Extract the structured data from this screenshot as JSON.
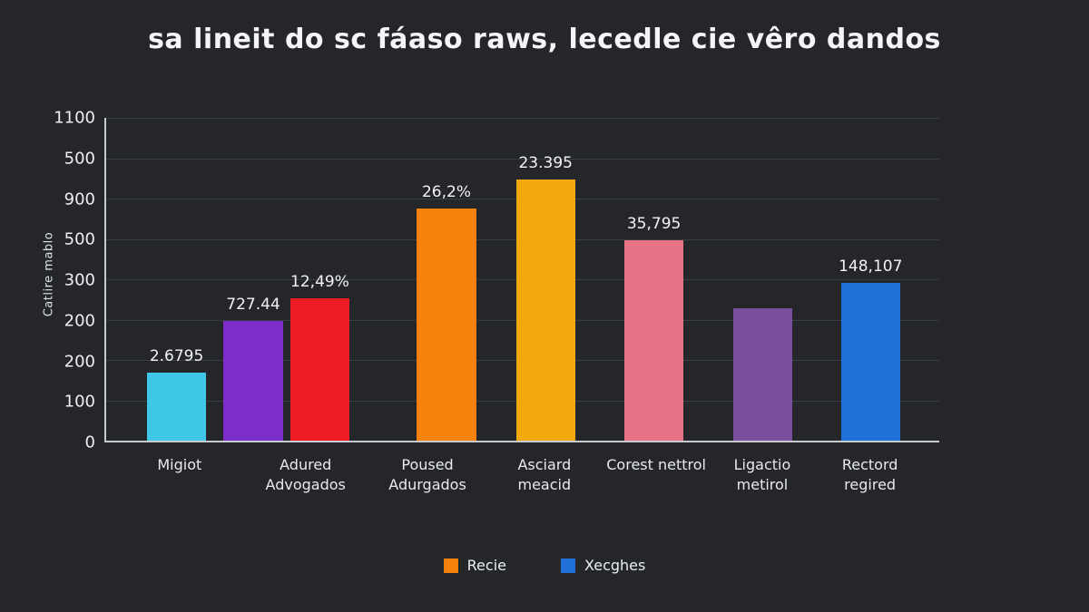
{
  "title": "sa lineit do sc fáaso raws, lecedle cie vêro dandos",
  "colors": {
    "background": "#242629",
    "grid": "#3a3e43",
    "axis": "#c7cbd0",
    "text": "#f1f3f4"
  },
  "chart_data": {
    "type": "bar",
    "title": "sa lineit do sc fáaso raws, lecedle cie vêro dandos",
    "xlabel": "",
    "ylabel": "Catlire mablo",
    "grid": true,
    "legend_position": "bottom",
    "y_ticks": [
      "1100",
      "500",
      "900",
      "500",
      "300",
      "200",
      "200",
      "100",
      "0"
    ],
    "bar_width_pct": 7.1,
    "bars": [
      {
        "value_label": "2.6795",
        "color": "#3ec7e6",
        "height_pct": 21,
        "x_pct": 4.9
      },
      {
        "value_label": "727.44",
        "color": "#7b2ec9",
        "height_pct": 37,
        "x_pct": 14.1
      },
      {
        "value_label": "12,49%",
        "color": "#ed1c24",
        "height_pct": 44,
        "x_pct": 22.1
      },
      {
        "value_label": "26,2%",
        "color": "#f6820d",
        "height_pct": 72,
        "x_pct": 37.3
      },
      {
        "value_label": "23.395",
        "color": "#f3a90d",
        "height_pct": 81,
        "x_pct": 49.2
      },
      {
        "value_label": "35,795",
        "color": "#e97386",
        "height_pct": 62,
        "x_pct": 62.2
      },
      {
        "value_label": "",
        "color": "#7b4f9b",
        "height_pct": 41,
        "x_pct": 75.3
      },
      {
        "value_label": "148,107",
        "color": "#2070da",
        "height_pct": 49,
        "x_pct": 88.2
      }
    ],
    "categories": [
      {
        "label": "Migiot",
        "x_pct": 9.0
      },
      {
        "label": "Adured Advogados",
        "x_pct": 24.1
      },
      {
        "label": "Poused Adurgados",
        "x_pct": 38.7
      },
      {
        "label": "Asciard meacid",
        "x_pct": 52.7
      },
      {
        "label": "Corest nettrol",
        "x_pct": 66.1
      },
      {
        "label": "Ligactio metirol",
        "x_pct": 78.8
      },
      {
        "label": "Rectord regired",
        "x_pct": 91.7
      }
    ],
    "legend": [
      {
        "label": "Recie",
        "color": "#f6820d"
      },
      {
        "label": "Xecghes",
        "color": "#2070da"
      }
    ]
  }
}
